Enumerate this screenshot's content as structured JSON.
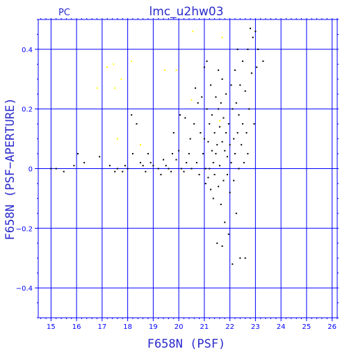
{
  "chart_data": {
    "type": "scatter",
    "title": "lmc_u2hw03",
    "corner_label": "PC",
    "xlabel": "F658N (PSF)",
    "ylabel": "F658N (PSF−APERTURE)",
    "xlim": [
      14.5,
      26.2
    ],
    "ylim": [
      -0.5,
      0.5
    ],
    "grid": true,
    "x_ticks": [
      "15",
      "16",
      "17",
      "18",
      "19",
      "20",
      "21",
      "22",
      "23",
      "24",
      "25",
      "26"
    ],
    "y_ticks": [
      "0.4",
      "0.2",
      "0",
      "−0.2",
      "−0.4"
    ],
    "colors": {
      "axes": "#0000ff",
      "text": "#2a2acc",
      "main_points": "#000000",
      "highlight_points": "#ffff00"
    },
    "series": [
      {
        "color": "#000000",
        "points": [
          [
            15.0,
            0.0
          ],
          [
            15.2,
            0.0
          ],
          [
            15.5,
            -0.01
          ],
          [
            15.9,
            0.01
          ],
          [
            16.05,
            0.05
          ],
          [
            16.3,
            0.02
          ],
          [
            16.9,
            0.04
          ],
          [
            17.3,
            0.01
          ],
          [
            17.5,
            -0.01
          ],
          [
            17.6,
            0.0
          ],
          [
            17.8,
            -0.01
          ],
          [
            17.9,
            0.01
          ],
          [
            18.0,
            0.0
          ],
          [
            18.2,
            0.05
          ],
          [
            18.15,
            0.18
          ],
          [
            18.35,
            0.15
          ],
          [
            18.5,
            0.02
          ],
          [
            18.6,
            0.01
          ],
          [
            18.7,
            -0.01
          ],
          [
            18.8,
            0.05
          ],
          [
            18.9,
            0.02
          ],
          [
            19.0,
            0.01
          ],
          [
            19.2,
            0.0
          ],
          [
            19.3,
            -0.02
          ],
          [
            19.4,
            0.03
          ],
          [
            19.5,
            0.01
          ],
          [
            19.6,
            0.0
          ],
          [
            19.7,
            -0.01
          ],
          [
            19.75,
            0.05
          ],
          [
            19.8,
            0.12
          ],
          [
            19.9,
            0.03
          ],
          [
            20.0,
            0.06
          ],
          [
            20.05,
            0.18
          ],
          [
            20.1,
            0.0
          ],
          [
            20.2,
            -0.01
          ],
          [
            20.25,
            0.17
          ],
          [
            20.3,
            0.02
          ],
          [
            20.4,
            0.05
          ],
          [
            20.45,
            0.1
          ],
          [
            20.5,
            0.0
          ],
          [
            20.6,
            0.15
          ],
          [
            20.65,
            0.27
          ],
          [
            20.7,
            0.02
          ],
          [
            20.75,
            0.22
          ],
          [
            20.8,
            -0.02
          ],
          [
            20.85,
            0.12
          ],
          [
            20.9,
            0.24
          ],
          [
            20.95,
            0.05
          ],
          [
            21.0,
            0.34
          ],
          [
            21.0,
            0.1
          ],
          [
            21.05,
            0.0
          ],
          [
            21.05,
            -0.05
          ],
          [
            21.1,
            0.36
          ],
          [
            21.1,
            0.2
          ],
          [
            21.15,
            0.09
          ],
          [
            21.15,
            -0.03
          ],
          [
            21.2,
            0.15
          ],
          [
            21.2,
            0.0
          ],
          [
            21.25,
            0.28
          ],
          [
            21.25,
            -0.07
          ],
          [
            21.3,
            0.06
          ],
          [
            21.3,
            0.18
          ],
          [
            21.35,
            -0.1
          ],
          [
            21.35,
            0.02
          ],
          [
            21.4,
            0.12
          ],
          [
            21.4,
            -0.02
          ],
          [
            21.45,
            0.24
          ],
          [
            21.45,
            0.05
          ],
          [
            21.5,
            -0.25
          ],
          [
            21.5,
            0.08
          ],
          [
            21.55,
            0.33
          ],
          [
            21.55,
            0.2
          ],
          [
            21.55,
            -0.06
          ],
          [
            21.6,
            0.14
          ],
          [
            21.6,
            0.01
          ],
          [
            21.65,
            -0.12
          ],
          [
            21.65,
            0.22
          ],
          [
            21.7,
            -0.26
          ],
          [
            21.7,
            0.09
          ],
          [
            21.7,
            0.3
          ],
          [
            21.75,
            -0.04
          ],
          [
            21.75,
            0.17
          ],
          [
            21.8,
            0.06
          ],
          [
            21.8,
            -0.18
          ],
          [
            21.85,
            0.12
          ],
          [
            21.85,
            0.25
          ],
          [
            21.9,
            -0.02
          ],
          [
            21.9,
            0.04
          ],
          [
            21.95,
            -0.22
          ],
          [
            21.95,
            0.15
          ],
          [
            22.0,
            0.08
          ],
          [
            22.0,
            -0.08
          ],
          [
            22.05,
            0.28
          ],
          [
            22.05,
            0.02
          ],
          [
            22.1,
            -0.32
          ],
          [
            22.1,
            0.2
          ],
          [
            22.15,
            0.1
          ],
          [
            22.15,
            -0.04
          ],
          [
            22.2,
            0.33
          ],
          [
            22.2,
            0.05
          ],
          [
            22.25,
            -0.15
          ],
          [
            22.25,
            0.22
          ],
          [
            22.3,
            0.12
          ],
          [
            22.3,
            0.4
          ],
          [
            22.35,
            0.0
          ],
          [
            22.35,
            0.18
          ],
          [
            22.4,
            -0.3
          ],
          [
            22.4,
            0.28
          ],
          [
            22.45,
            0.08
          ],
          [
            22.5,
            0.36
          ],
          [
            22.5,
            0.15
          ],
          [
            22.55,
            0.02
          ],
          [
            22.6,
            0.26
          ],
          [
            22.6,
            -0.3
          ],
          [
            22.65,
            0.12
          ],
          [
            22.7,
            0.4
          ],
          [
            22.7,
            0.05
          ],
          [
            22.75,
            0.2
          ],
          [
            22.8,
            0.47
          ],
          [
            22.85,
            0.32
          ],
          [
            22.9,
            0.44
          ],
          [
            22.95,
            0.15
          ],
          [
            23.0,
            0.46
          ],
          [
            23.05,
            0.34
          ],
          [
            23.1,
            0.4
          ],
          [
            23.3,
            0.36
          ]
        ]
      },
      {
        "color": "#ffff00",
        "points": [
          [
            16.8,
            0.27
          ],
          [
            17.2,
            0.34
          ],
          [
            17.45,
            0.35
          ],
          [
            17.5,
            0.27
          ],
          [
            17.75,
            0.3
          ],
          [
            17.6,
            0.1
          ],
          [
            18.15,
            0.36
          ],
          [
            18.5,
            0.08
          ],
          [
            19.45,
            0.33
          ],
          [
            19.9,
            0.33
          ],
          [
            20.5,
            0.23
          ],
          [
            20.55,
            0.46
          ],
          [
            21.7,
            0.44
          ],
          [
            21.6,
            0.16
          ]
        ]
      }
    ]
  }
}
